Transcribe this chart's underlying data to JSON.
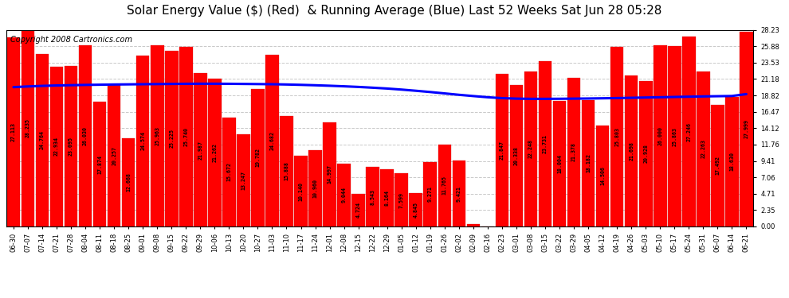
{
  "title": "Solar Energy Value ($) (Red)  & Running Average (Blue) Last 52 Weeks Sat Jun 28 05:28",
  "copyright": "Copyright 2008 Cartronics.com",
  "bar_color": "#ff0000",
  "avg_line_color": "#0000ff",
  "background_color": "#ffffff",
  "plot_bg_color": "#ffffff",
  "grid_color": "#bbbbbb",
  "categories": [
    "06-30",
    "07-07",
    "07-14",
    "07-21",
    "07-28",
    "08-04",
    "08-11",
    "08-18",
    "08-25",
    "09-01",
    "09-08",
    "09-15",
    "09-22",
    "09-29",
    "10-06",
    "10-13",
    "10-20",
    "10-27",
    "11-03",
    "11-10",
    "11-17",
    "11-24",
    "12-01",
    "12-08",
    "12-15",
    "12-22",
    "12-29",
    "01-05",
    "01-12",
    "01-19",
    "01-26",
    "02-02",
    "02-09",
    "02-16",
    "02-23",
    "03-01",
    "03-08",
    "03-15",
    "03-22",
    "03-29",
    "04-05",
    "04-12",
    "04-19",
    "04-26",
    "05-03",
    "05-10",
    "05-17",
    "05-24",
    "05-31",
    "06-07",
    "06-14",
    "06-21"
  ],
  "bar_values": [
    27.113,
    28.235,
    24.764,
    22.934,
    23.095,
    26.03,
    17.874,
    20.257,
    12.668,
    24.574,
    25.963,
    25.225,
    25.74,
    21.987,
    21.262,
    15.672,
    13.247,
    19.782,
    24.682,
    15.888,
    10.14,
    10.96,
    14.997,
    9.044,
    4.724,
    8.543,
    8.164,
    7.599,
    4.845,
    9.271,
    11.765,
    9.421,
    0.317,
    0.0,
    21.847,
    20.338,
    22.248,
    23.731,
    18.004,
    21.378,
    18.182,
    14.506,
    25.803,
    21.698,
    20.928,
    26.0,
    25.863,
    27.246,
    22.263,
    17.492,
    18.63,
    27.999
  ],
  "running_avg": [
    20.0,
    20.1,
    20.18,
    20.24,
    20.28,
    20.32,
    20.35,
    20.38,
    20.4,
    20.42,
    20.44,
    20.46,
    20.48,
    20.49,
    20.49,
    20.48,
    20.46,
    20.44,
    20.42,
    20.38,
    20.33,
    20.27,
    20.2,
    20.12,
    20.03,
    19.92,
    19.8,
    19.65,
    19.48,
    19.3,
    19.1,
    18.9,
    18.72,
    18.55,
    18.42,
    18.35,
    18.32,
    18.32,
    18.33,
    18.35,
    18.37,
    18.4,
    18.43,
    18.47,
    18.51,
    18.55,
    18.59,
    18.63,
    18.67,
    18.7,
    18.73,
    19.0
  ],
  "ylim_max": 28.23,
  "yticks": [
    0.0,
    2.35,
    4.71,
    7.06,
    9.41,
    11.76,
    14.12,
    16.47,
    18.82,
    21.18,
    23.53,
    25.88,
    28.23
  ],
  "title_fontsize": 11,
  "copyright_fontsize": 7,
  "tick_fontsize": 6.0,
  "label_fontsize": 4.8
}
